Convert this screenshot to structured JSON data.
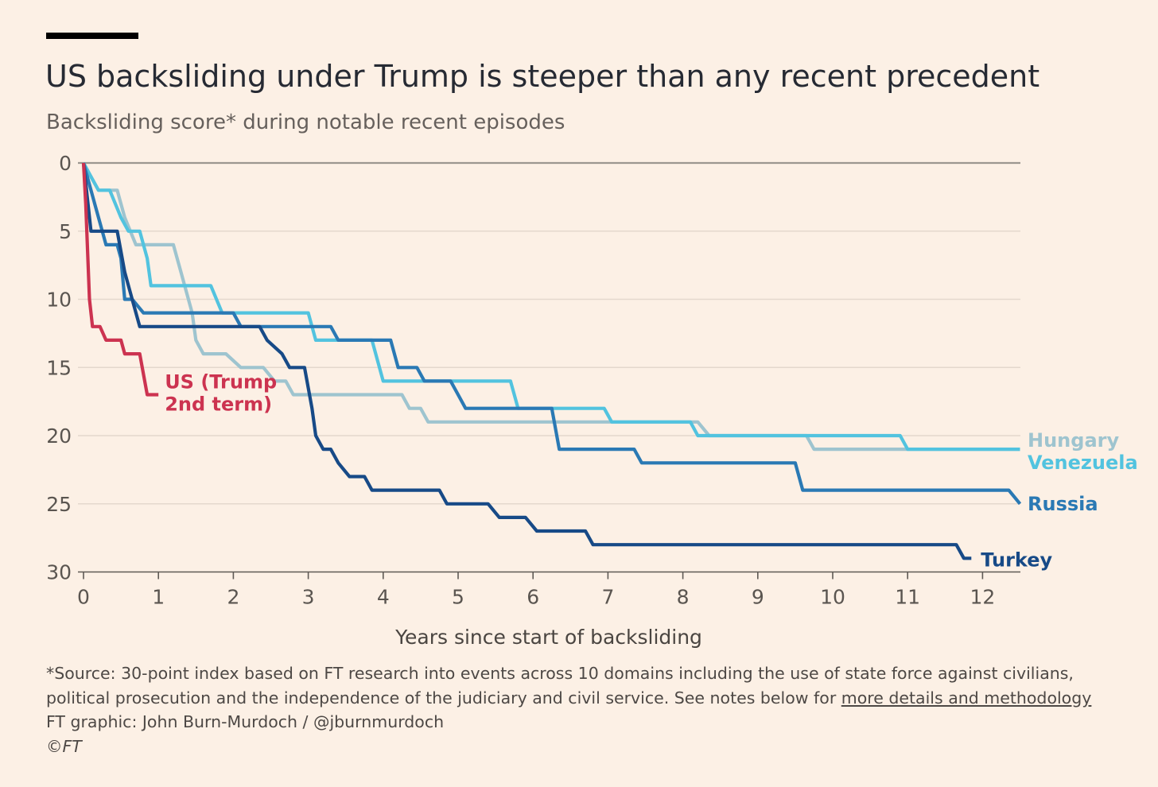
{
  "header": {
    "title": "US backsliding under Trump is steeper than any recent precedent",
    "subtitle": "Backsliding score* during notable recent episodes"
  },
  "footer": {
    "note_line1": "*Source: 30-point index based on FT research into events across 10 domains including the use of state force against civilians,",
    "note_line2_text": "political prosecution and the independence of the judiciary and civil service. See notes below for ",
    "note_link": "more details and methodology",
    "credit": "FT graphic: John Burn-Murdoch / @jburnmurdoch",
    "copyright": "©FT"
  },
  "colors": {
    "background": "#fcf0e5",
    "us": "#cc3350",
    "hungary": "#9ec4cf",
    "venezuela": "#52c3df",
    "russia": "#2a79b4",
    "turkey": "#174a87",
    "gridline": "#e4d8cd",
    "zero_line": "#9c9790",
    "axis_text": "#5a5550"
  },
  "chart_data": {
    "type": "line",
    "step": true,
    "xlabel": "Years since start of backsliding",
    "ylabel": "",
    "xlim": [
      0,
      12.5
    ],
    "ylim": [
      0,
      30
    ],
    "y_inverted": true,
    "x_ticks": [
      "0",
      "1",
      "2",
      "3",
      "4",
      "5",
      "6",
      "7",
      "8",
      "9",
      "10",
      "11",
      "12"
    ],
    "y_ticks": [
      "0",
      "5",
      "10",
      "15",
      "20",
      "25",
      "30"
    ],
    "grid": true,
    "legend": "direct labels at line ends",
    "series": [
      {
        "name": "Hungary",
        "color_key": "hungary",
        "points": [
          [
            0,
            0
          ],
          [
            0.1,
            1
          ],
          [
            0.2,
            2
          ],
          [
            0.45,
            2
          ],
          [
            0.55,
            4
          ],
          [
            0.7,
            6
          ],
          [
            1.2,
            6
          ],
          [
            1.3,
            8
          ],
          [
            1.45,
            11
          ],
          [
            1.5,
            13
          ],
          [
            1.6,
            14
          ],
          [
            1.9,
            14
          ],
          [
            2.1,
            15
          ],
          [
            2.4,
            15
          ],
          [
            2.55,
            16
          ],
          [
            2.7,
            16
          ],
          [
            2.8,
            17
          ],
          [
            4.25,
            17
          ],
          [
            4.35,
            18
          ],
          [
            4.5,
            18
          ],
          [
            4.6,
            19
          ],
          [
            8.2,
            19
          ],
          [
            8.35,
            20
          ],
          [
            9.65,
            20
          ],
          [
            9.75,
            21
          ],
          [
            12.5,
            21
          ]
        ]
      },
      {
        "name": "Venezuela",
        "color_key": "venezuela",
        "points": [
          [
            0,
            0
          ],
          [
            0.1,
            1
          ],
          [
            0.2,
            2
          ],
          [
            0.35,
            2
          ],
          [
            0.5,
            4
          ],
          [
            0.6,
            5
          ],
          [
            0.75,
            5
          ],
          [
            0.85,
            7
          ],
          [
            0.9,
            9
          ],
          [
            1.7,
            9
          ],
          [
            1.85,
            11
          ],
          [
            3,
            11
          ],
          [
            3.1,
            13
          ],
          [
            3.85,
            13
          ],
          [
            4,
            16
          ],
          [
            5.7,
            16
          ],
          [
            5.8,
            18
          ],
          [
            6.95,
            18
          ],
          [
            7.05,
            19
          ],
          [
            8.1,
            19
          ],
          [
            8.2,
            20
          ],
          [
            10.9,
            20
          ],
          [
            11,
            21
          ],
          [
            12.5,
            21
          ]
        ]
      },
      {
        "name": "Russia",
        "color_key": "russia",
        "points": [
          [
            0,
            0
          ],
          [
            0.15,
            3
          ],
          [
            0.25,
            5
          ],
          [
            0.3,
            6
          ],
          [
            0.45,
            6
          ],
          [
            0.5,
            7
          ],
          [
            0.55,
            10
          ],
          [
            0.65,
            10
          ],
          [
            0.8,
            11
          ],
          [
            2,
            11
          ],
          [
            2.1,
            12
          ],
          [
            3.3,
            12
          ],
          [
            3.4,
            13
          ],
          [
            4.1,
            13
          ],
          [
            4.2,
            15
          ],
          [
            4.45,
            15
          ],
          [
            4.55,
            16
          ],
          [
            4.9,
            16
          ],
          [
            5,
            17
          ],
          [
            5.1,
            18
          ],
          [
            6.25,
            18
          ],
          [
            6.35,
            21
          ],
          [
            7.35,
            21
          ],
          [
            7.45,
            22
          ],
          [
            9.5,
            22
          ],
          [
            9.6,
            24
          ],
          [
            12.35,
            24
          ],
          [
            12.5,
            25
          ]
        ]
      },
      {
        "name": "Turkey",
        "color_key": "turkey",
        "points": [
          [
            0,
            0
          ],
          [
            0.1,
            5
          ],
          [
            0.45,
            5
          ],
          [
            0.55,
            8
          ],
          [
            0.65,
            10
          ],
          [
            0.75,
            12
          ],
          [
            2.35,
            12
          ],
          [
            2.45,
            13
          ],
          [
            2.65,
            14
          ],
          [
            2.75,
            15
          ],
          [
            2.95,
            15
          ],
          [
            3.05,
            18
          ],
          [
            3.1,
            20
          ],
          [
            3.2,
            21
          ],
          [
            3.3,
            21
          ],
          [
            3.4,
            22
          ],
          [
            3.55,
            23
          ],
          [
            3.75,
            23
          ],
          [
            3.85,
            24
          ],
          [
            4.75,
            24
          ],
          [
            4.85,
            25
          ],
          [
            5.4,
            25
          ],
          [
            5.55,
            26
          ],
          [
            5.9,
            26
          ],
          [
            6.05,
            27
          ],
          [
            6.7,
            27
          ],
          [
            6.8,
            28
          ],
          [
            11.65,
            28
          ],
          [
            11.75,
            29
          ],
          [
            11.85,
            29
          ]
        ]
      },
      {
        "name": "US (Trump 2nd term)",
        "color_key": "us",
        "points": [
          [
            0,
            0
          ],
          [
            0.03,
            3
          ],
          [
            0.08,
            10
          ],
          [
            0.12,
            12
          ],
          [
            0.22,
            12
          ],
          [
            0.3,
            13
          ],
          [
            0.5,
            13
          ],
          [
            0.55,
            14
          ],
          [
            0.75,
            14
          ],
          [
            0.85,
            17
          ],
          [
            1,
            17
          ]
        ]
      }
    ],
    "series_labels": {
      "hungary": "Hungary",
      "venezuela": "Venezuela",
      "russia": "Russia",
      "turkey": "Turkey",
      "us_line1": "US (Trump",
      "us_line2": "2nd term)"
    }
  }
}
